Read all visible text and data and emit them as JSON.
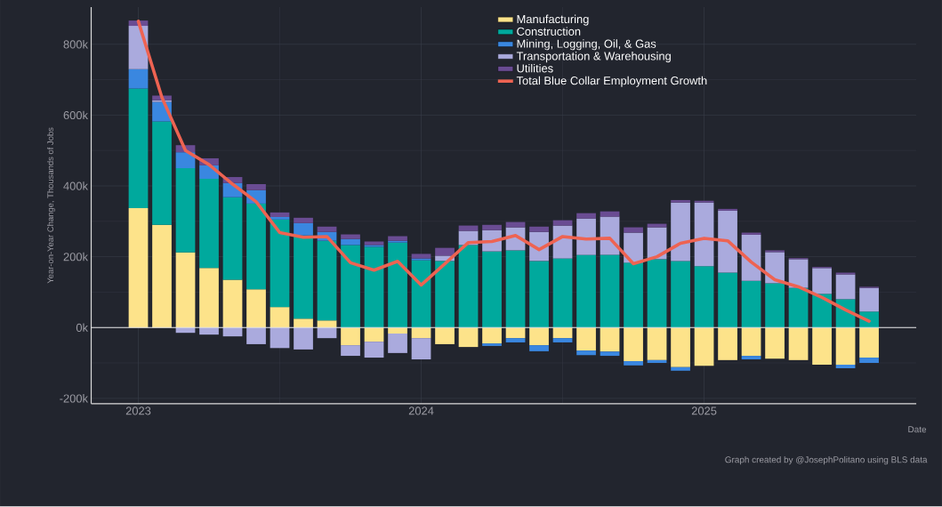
{
  "chart_data": {
    "type": "bar",
    "stacked": true,
    "xlabel": "Date",
    "ylabel": "Year-on-Year Change, Thousands of Jobs",
    "annotations": [
      "Graph created by @JosephPolitano using BLS data"
    ],
    "x": [
      "2023-01",
      "2023-02",
      "2023-03",
      "2023-04",
      "2023-05",
      "2023-06",
      "2023-07",
      "2023-08",
      "2023-09",
      "2023-10",
      "2023-11",
      "2023-12",
      "2024-01",
      "2024-02",
      "2024-03",
      "2024-04",
      "2024-05",
      "2024-06",
      "2024-07",
      "2024-08",
      "2024-09",
      "2024-10",
      "2024-11",
      "2024-12",
      "2025-01",
      "2025-02",
      "2025-03",
      "2025-04",
      "2025-05",
      "2025-06",
      "2025-07",
      "2025-08"
    ],
    "xlim": [
      "2022-11",
      "2025-10"
    ],
    "xticks": [
      {
        "value": "2023-01",
        "label": "2023"
      },
      {
        "value": "2024-01",
        "label": "2024"
      },
      {
        "value": "2025-01",
        "label": "2025"
      }
    ],
    "ylim": [
      -215,
      905
    ],
    "yticks": [
      {
        "value": -200,
        "label": "-200k"
      },
      {
        "value": 0,
        "label": "0k"
      },
      {
        "value": 200,
        "label": "200k"
      },
      {
        "value": 400,
        "label": "400k"
      },
      {
        "value": 600,
        "label": "600k"
      },
      {
        "value": 800,
        "label": "800k"
      }
    ],
    "grid": true,
    "legend": "top",
    "line_style": "solid",
    "ref_lines": [
      {
        "axis": "y",
        "value": 0,
        "color": "#e8e8e8"
      }
    ],
    "series": [
      {
        "name": "Manufacturing",
        "color": "#fde38a",
        "values": [
          337,
          290,
          212,
          168,
          135,
          108,
          58,
          25,
          20,
          -50,
          -40,
          -17,
          -30,
          -47,
          -55,
          -45,
          -30,
          -50,
          -30,
          -65,
          -68,
          -95,
          -92,
          -112,
          -108,
          -92,
          -80,
          -88,
          -92,
          -105,
          -105,
          -85
        ]
      },
      {
        "name": "Construction",
        "color": "#00a99d",
        "values": [
          338,
          292,
          238,
          252,
          233,
          242,
          247,
          235,
          225,
          233,
          228,
          240,
          190,
          188,
          233,
          215,
          218,
          188,
          195,
          205,
          205,
          183,
          193,
          188,
          173,
          155,
          132,
          125,
          112,
          95,
          80,
          45
        ]
      },
      {
        "name": "Mining, Logging, Oil, & Gas",
        "color": "#3a87e0",
        "values": [
          55,
          55,
          45,
          38,
          40,
          38,
          7,
          35,
          25,
          17,
          5,
          5,
          5,
          0,
          0,
          -7,
          -12,
          -17,
          -12,
          -13,
          -12,
          -12,
          -8,
          -10,
          0,
          0,
          -10,
          0,
          0,
          0,
          -10,
          -15
        ]
      },
      {
        "name": "Transportation & Warehousing",
        "color": "#aaaadd",
        "values": [
          122,
          5,
          -15,
          -20,
          -25,
          -47,
          -58,
          -62,
          -30,
          -30,
          -45,
          -55,
          -60,
          15,
          40,
          60,
          65,
          82,
          93,
          103,
          108,
          85,
          90,
          165,
          180,
          175,
          130,
          88,
          81,
          73,
          70,
          67
        ]
      },
      {
        "name": "Utilities",
        "color": "#6a4c93",
        "values": [
          15,
          13,
          20,
          20,
          17,
          17,
          13,
          15,
          15,
          13,
          10,
          13,
          13,
          22,
          15,
          15,
          15,
          15,
          15,
          15,
          15,
          15,
          10,
          7,
          5,
          5,
          6,
          5,
          3,
          3,
          5,
          3
        ]
      },
      {
        "name": "Total Blue Collar Employment Growth",
        "type": "line",
        "color": "#ee6352",
        "values": [
          865,
          650,
          500,
          460,
          405,
          355,
          268,
          255,
          257,
          183,
          162,
          187,
          120,
          180,
          240,
          243,
          260,
          220,
          257,
          250,
          252,
          180,
          200,
          238,
          252,
          245,
          185,
          135,
          115,
          85,
          50,
          18
        ]
      }
    ]
  }
}
